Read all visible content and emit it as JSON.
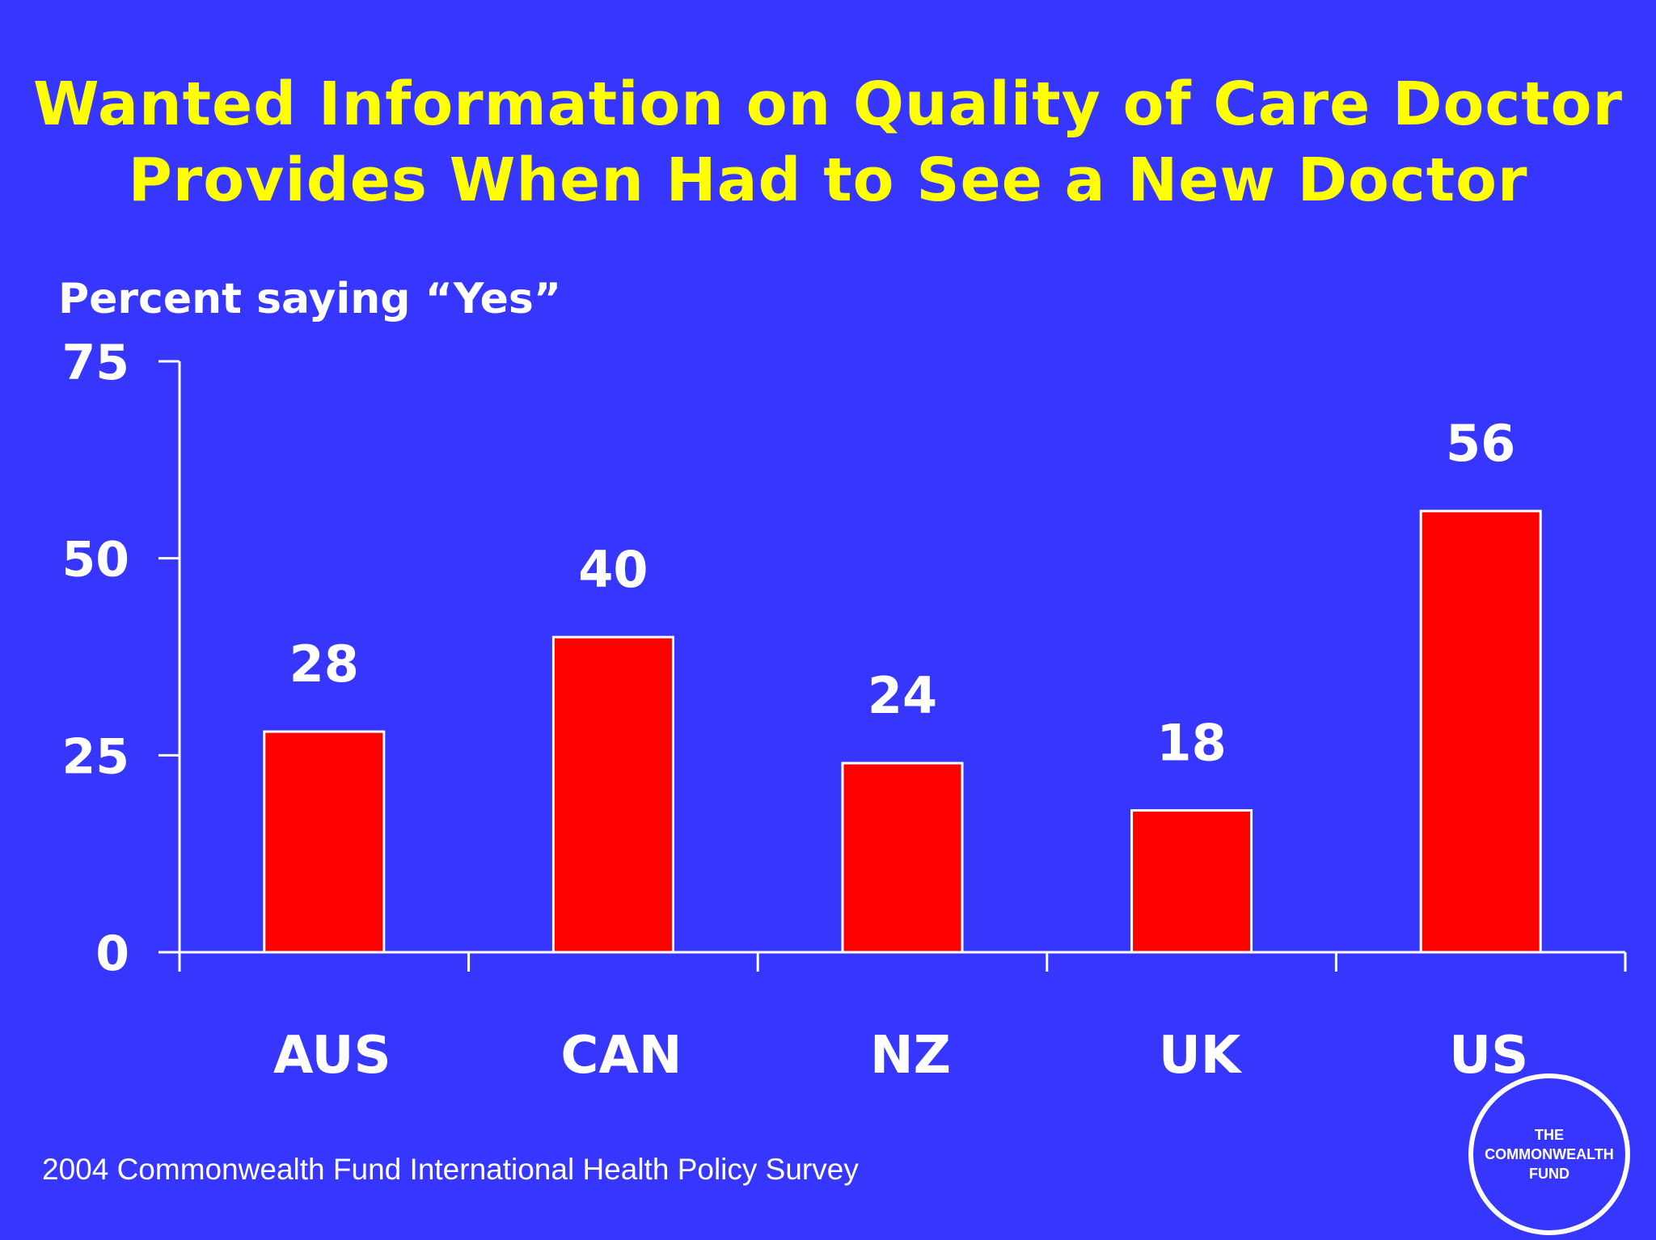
{
  "title_line1": "Wanted Information on Quality of Care Doctor",
  "title_line2": "Provides When Had to See a New Doctor",
  "source": "2004 Commonwealth Fund International Health Policy Survey",
  "logo": {
    "line1": "THE",
    "line2": "COMMONWEALTH",
    "line3": "FUND"
  },
  "colors": {
    "background": "#3636ff",
    "title": "#ffff00",
    "bar": "#ff0000",
    "text": "#ffffff"
  },
  "chart_data": {
    "type": "bar",
    "title": "Wanted Information on Quality of Care Doctor Provides When Had to See a New Doctor",
    "ylabel": "Percent saying “Yes”",
    "xlabel": "",
    "categories": [
      "AUS",
      "CAN",
      "NZ",
      "UK",
      "US"
    ],
    "values": [
      28,
      40,
      24,
      18,
      56
    ],
    "ylim": [
      0,
      75
    ],
    "yticks": [
      0,
      25,
      50,
      75
    ],
    "grid": false,
    "legend": "none",
    "data_labels": true
  }
}
